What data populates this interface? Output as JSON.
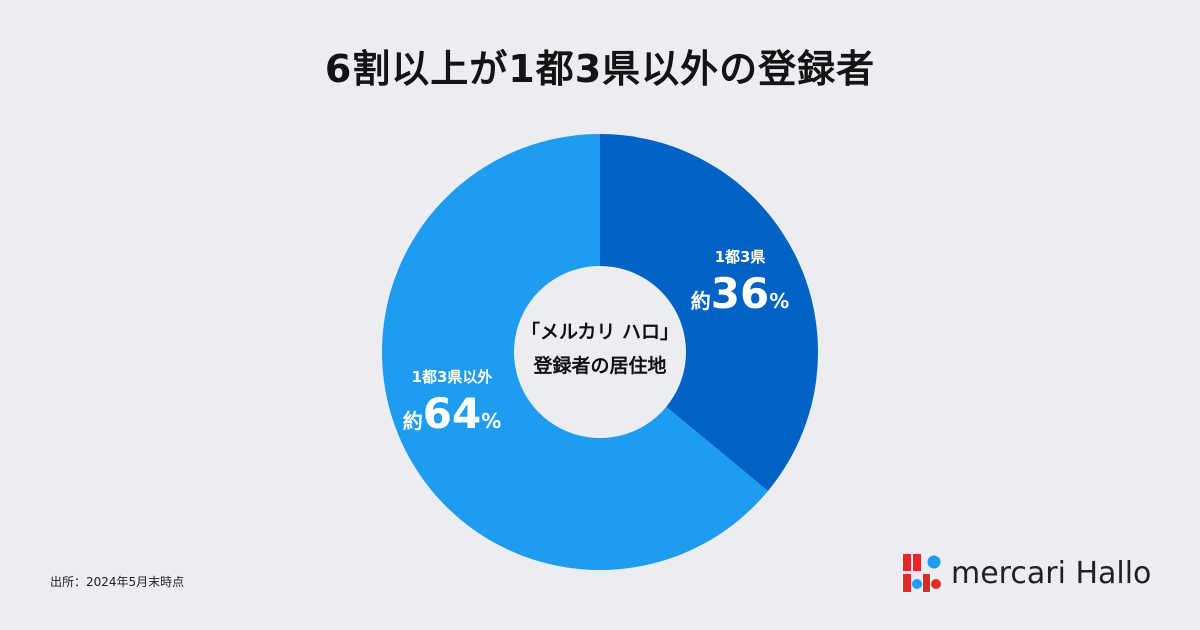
{
  "title": "6割以上が1都3県以外の登録者",
  "chart_data": {
    "type": "pie",
    "title": "6割以上が1都3県以外の登録者",
    "center_label": [
      "「メルカリ ハロ」",
      "登録者の居住地"
    ],
    "slices": [
      {
        "label": "1都3県",
        "value": 36,
        "prefix": "約",
        "display": "36",
        "unit": "%",
        "color": "#0062C4"
      },
      {
        "label": "1都3県以外",
        "value": 64,
        "prefix": "約",
        "display": "64",
        "unit": "%",
        "color": "#1D9CF0"
      }
    ]
  },
  "source": "出所：2024年5月末時点",
  "logo": {
    "text": "mercari Hallo",
    "colors": [
      "#E8262A",
      "#1D9CF0"
    ]
  }
}
